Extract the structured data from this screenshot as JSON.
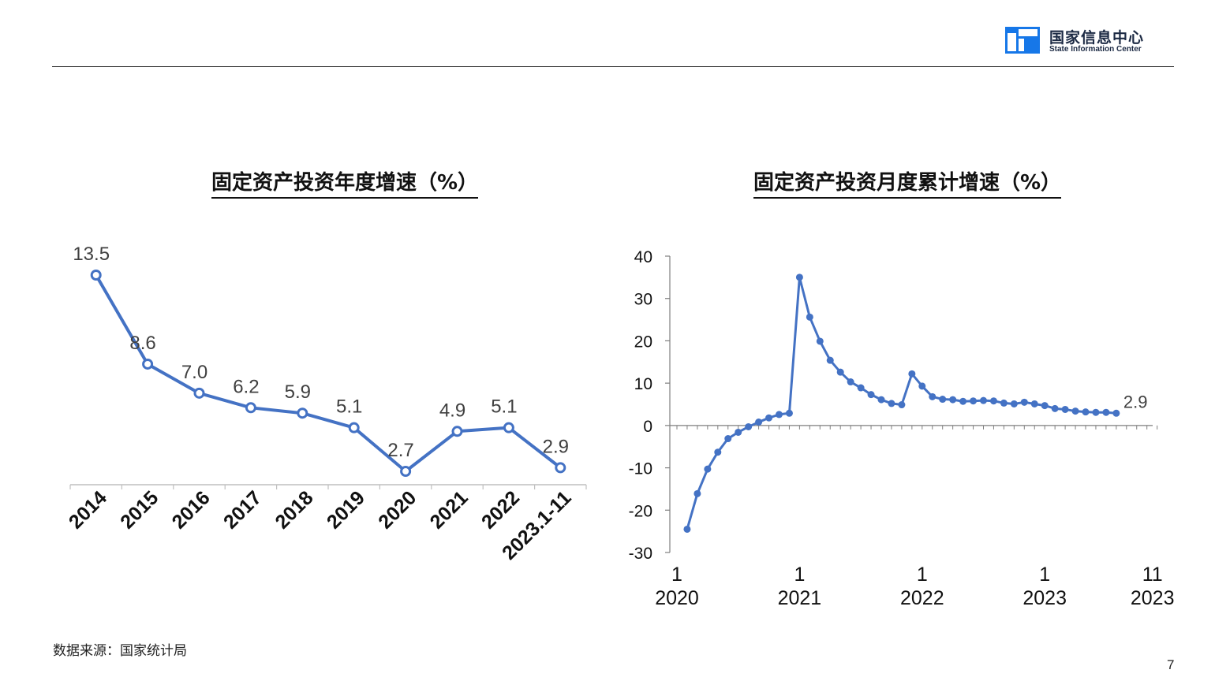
{
  "header": {
    "logo_cn": "国家信息中心",
    "logo_en": "State Information Center",
    "logo_icon": "state-information-center-logo-icon",
    "brand_color": "#1677e8"
  },
  "footer": {
    "source": "数据来源：国家统计局",
    "page_number": "7"
  },
  "chart_data": [
    {
      "type": "line",
      "title": "固定资产投资年度增速（%）",
      "categories": [
        "2014",
        "2015",
        "2016",
        "2017",
        "2018",
        "2019",
        "2020",
        "2021",
        "2022",
        "2023.1-11"
      ],
      "series": [
        {
          "values": [
            13.5,
            8.6,
            7.0,
            6.2,
            5.9,
            5.1,
            2.7,
            4.9,
            5.1,
            2.9
          ]
        }
      ],
      "data_labels": [
        "13.5",
        "8.6",
        "7.0",
        "6.2",
        "5.9",
        "5.1",
        "2.7",
        "4.9",
        "5.1",
        "2.9"
      ],
      "marker": "hollow-circle",
      "y_axis_visible": false,
      "grid": false,
      "color": "#4472c4"
    },
    {
      "type": "line",
      "title": "固定资产投资月度累计增速（%）",
      "x_tick_labels": [
        {
          "month": "1",
          "year": "2020"
        },
        {
          "month": "1",
          "year": "2021"
        },
        {
          "month": "1",
          "year": "2022"
        },
        {
          "month": "1",
          "year": "2023"
        },
        {
          "month": "11",
          "year": "2023"
        }
      ],
      "ylim": [
        -30,
        40
      ],
      "yticks": [
        "40",
        "30",
        "20",
        "10",
        "0",
        "-10",
        "-20",
        "-30"
      ],
      "series": [
        {
          "start": "2020-02",
          "end": "2023-11",
          "values": [
            -24.5,
            -16.1,
            -10.3,
            -6.3,
            -3.1,
            -1.6,
            -0.3,
            0.8,
            1.8,
            2.6,
            2.9,
            35.0,
            25.6,
            19.9,
            15.4,
            12.6,
            10.3,
            8.9,
            7.3,
            6.1,
            5.2,
            4.9,
            12.2,
            9.3,
            6.8,
            6.2,
            6.1,
            5.7,
            5.8,
            5.9,
            5.8,
            5.3,
            5.1,
            5.5,
            5.1,
            4.7,
            4.0,
            3.8,
            3.4,
            3.2,
            3.1,
            3.1,
            2.9
          ]
        }
      ],
      "end_label": "2.9",
      "marker": "filled-circle",
      "grid": false,
      "color": "#4472c4"
    }
  ]
}
